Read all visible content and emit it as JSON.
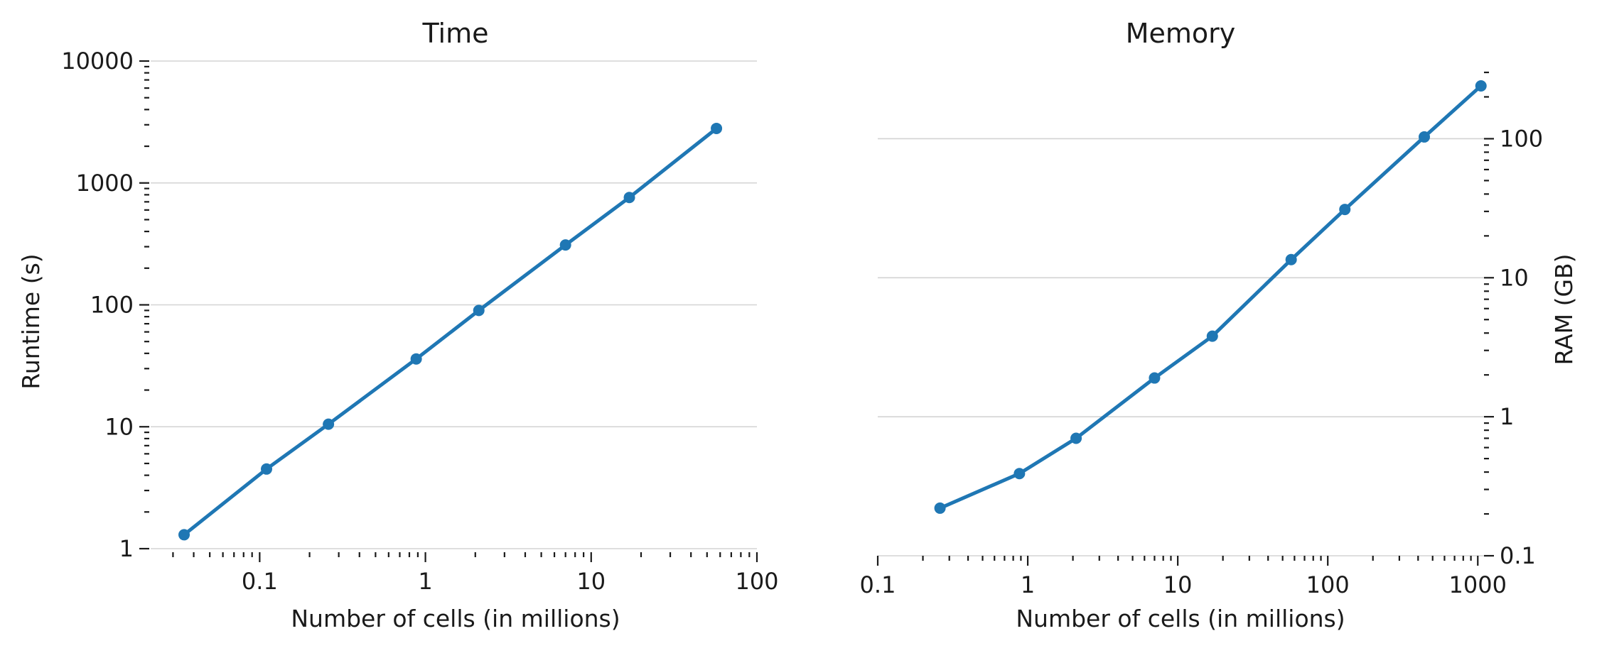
{
  "chart_data": [
    {
      "type": "line",
      "title": "Time",
      "xlabel": "Number of cells (in millions)",
      "ylabel": "Runtime (s)",
      "xscale": "log",
      "yscale": "log",
      "xlim": [
        0.022,
        100
      ],
      "ylim": [
        1,
        10000
      ],
      "xticks": [
        0.1,
        1,
        10,
        100
      ],
      "xtick_labels": [
        "0.1",
        "1",
        "10",
        "100"
      ],
      "yticks": [
        1,
        10,
        100,
        1000,
        10000
      ],
      "ytick_labels": [
        "1",
        "10",
        "100",
        "1000",
        "10000"
      ],
      "y_axis_side": "left",
      "grid": "horizontal major",
      "color": "#1f77b4",
      "x": [
        0.035,
        0.11,
        0.26,
        0.88,
        2.1,
        7.0,
        17,
        57
      ],
      "y": [
        1.3,
        4.5,
        10.5,
        36,
        90,
        310,
        760,
        2800
      ]
    },
    {
      "type": "line",
      "title": "Memory",
      "xlabel": "Number of cells (in millions)",
      "ylabel": "RAM (GB)",
      "xscale": "log",
      "yscale": "log",
      "xlim": [
        0.1,
        1100
      ],
      "ylim": [
        0.1,
        300
      ],
      "xticks": [
        0.1,
        1,
        10,
        100,
        1000
      ],
      "xtick_labels": [
        "0.1",
        "1",
        "10",
        "100",
        "1000"
      ],
      "yticks": [
        0.1,
        1,
        10,
        100
      ],
      "ytick_labels": [
        "0.1",
        "1",
        "10",
        "100"
      ],
      "y_axis_side": "right",
      "grid": "horizontal major",
      "color": "#1f77b4",
      "x": [
        0.26,
        0.88,
        2.1,
        7.0,
        17,
        57,
        130,
        440,
        1050
      ],
      "y": [
        0.22,
        0.39,
        0.7,
        1.9,
        3.8,
        13.5,
        31,
        103,
        240
      ]
    }
  ]
}
